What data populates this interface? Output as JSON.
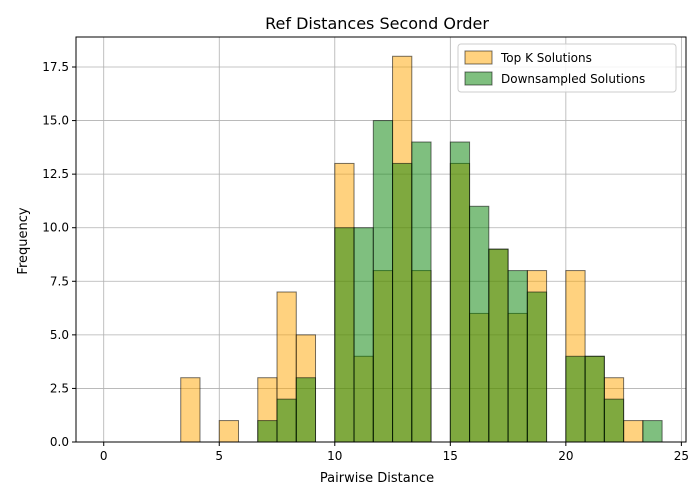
{
  "chart_data": {
    "type": "bar",
    "title": "Ref Distances Second Order",
    "xlabel": "Pairwise Distance",
    "ylabel": "Frequency",
    "xlim": [
      -1.2,
      25.2
    ],
    "ylim": [
      0,
      18.9
    ],
    "xticks": [
      0,
      5,
      10,
      15,
      20,
      25
    ],
    "yticks": [
      0.0,
      2.5,
      5.0,
      7.5,
      10.0,
      12.5,
      15.0,
      17.5
    ],
    "ytick_labels": [
      "0.0",
      "2.5",
      "5.0",
      "7.5",
      "10.0",
      "12.5",
      "15.0",
      "17.5"
    ],
    "bin_width": 0.833,
    "grid": true,
    "legend_position": "top-right",
    "series": [
      {
        "name": "Top K Solutions",
        "color": "#ffa500",
        "bins": [
          {
            "x0": 0.0,
            "count": 0
          },
          {
            "x0": 0.833,
            "count": 0
          },
          {
            "x0": 1.667,
            "count": 0
          },
          {
            "x0": 2.5,
            "count": 0
          },
          {
            "x0": 3.333,
            "count": 3
          },
          {
            "x0": 4.167,
            "count": 0
          },
          {
            "x0": 5.0,
            "count": 1
          },
          {
            "x0": 5.833,
            "count": 0
          },
          {
            "x0": 6.667,
            "count": 3
          },
          {
            "x0": 7.5,
            "count": 7
          },
          {
            "x0": 8.333,
            "count": 5
          },
          {
            "x0": 9.167,
            "count": 0
          },
          {
            "x0": 10.0,
            "count": 13
          },
          {
            "x0": 10.833,
            "count": 4
          },
          {
            "x0": 11.667,
            "count": 8
          },
          {
            "x0": 12.5,
            "count": 18
          },
          {
            "x0": 13.333,
            "count": 8
          },
          {
            "x0": 14.167,
            "count": 0
          },
          {
            "x0": 15.0,
            "count": 13
          },
          {
            "x0": 15.833,
            "count": 6
          },
          {
            "x0": 16.667,
            "count": 9
          },
          {
            "x0": 17.5,
            "count": 6
          },
          {
            "x0": 18.333,
            "count": 8
          },
          {
            "x0": 19.167,
            "count": 0
          },
          {
            "x0": 20.0,
            "count": 8
          },
          {
            "x0": 20.833,
            "count": 4
          },
          {
            "x0": 21.667,
            "count": 3
          },
          {
            "x0": 22.5,
            "count": 1
          }
        ]
      },
      {
        "name": "Downsampled Solutions",
        "color": "#008000",
        "bins": [
          {
            "x0": 6.667,
            "count": 1
          },
          {
            "x0": 7.5,
            "count": 2
          },
          {
            "x0": 8.333,
            "count": 3
          },
          {
            "x0": 10.0,
            "count": 10
          },
          {
            "x0": 10.833,
            "count": 10
          },
          {
            "x0": 11.667,
            "count": 15
          },
          {
            "x0": 12.5,
            "count": 13
          },
          {
            "x0": 13.333,
            "count": 14
          },
          {
            "x0": 15.0,
            "count": 14
          },
          {
            "x0": 15.833,
            "count": 11
          },
          {
            "x0": 16.667,
            "count": 9
          },
          {
            "x0": 17.5,
            "count": 8
          },
          {
            "x0": 18.333,
            "count": 7
          },
          {
            "x0": 20.0,
            "count": 4
          },
          {
            "x0": 20.833,
            "count": 4
          },
          {
            "x0": 21.667,
            "count": 2
          },
          {
            "x0": 23.333,
            "count": 1
          }
        ]
      }
    ]
  }
}
